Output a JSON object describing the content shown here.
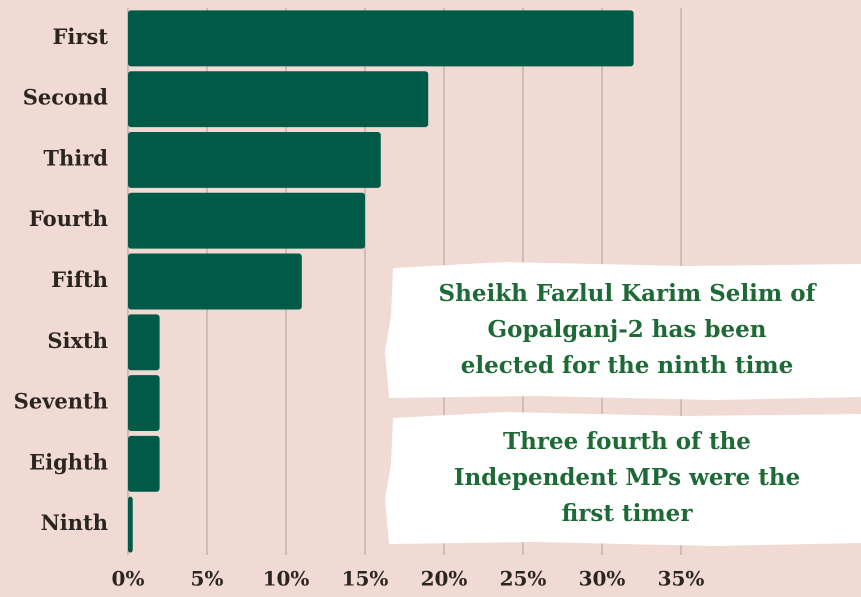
{
  "chart_data": {
    "type": "bar",
    "orientation": "horizontal",
    "categories": [
      "First",
      "Second",
      "Third",
      "Fourth",
      "Fifth",
      "Sixth",
      "Seventh",
      "Eighth",
      "Ninth"
    ],
    "values": [
      32,
      19,
      16,
      15,
      11,
      2,
      2,
      2,
      0.3
    ],
    "color": "#005a48",
    "xlim": [
      0,
      35
    ],
    "xticks": [
      {
        "value": 0,
        "label": "0%"
      },
      {
        "value": 5,
        "label": "5%"
      },
      {
        "value": 10,
        "label": "10%"
      },
      {
        "value": 15,
        "label": "15%"
      },
      {
        "value": 20,
        "label": "20%"
      },
      {
        "value": 25,
        "label": "25%"
      },
      {
        "value": 30,
        "label": "30%"
      },
      {
        "value": 35,
        "label": "35%"
      }
    ],
    "grid": true,
    "annotations": [
      [
        "Sheikh Fazlul Karim Selim of",
        "Gopalganj-2 has been",
        "elected for the ninth time"
      ],
      [
        "Three fourth of the",
        "Independent MPs were the",
        "first timer"
      ]
    ]
  }
}
